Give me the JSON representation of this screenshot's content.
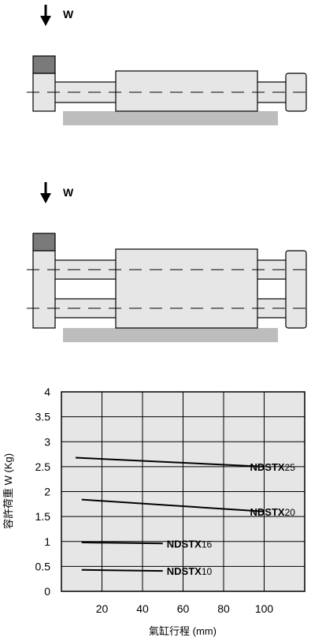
{
  "diagram_top": {
    "load_label": "W"
  },
  "diagram_bottom": {
    "load_label": "W"
  },
  "chart_data": {
    "type": "line",
    "xlabel": "氣缸行程 (mm)",
    "ylabel": "容許荷重 W (Kg)",
    "x_ticks": [
      "20",
      "40",
      "60",
      "80",
      "100"
    ],
    "y_ticks": [
      "0",
      "0.5",
      "1",
      "1.5",
      "2",
      "2.5",
      "3",
      "3.5",
      "4"
    ],
    "xlim": [
      0,
      120
    ],
    "ylim": [
      0,
      4
    ],
    "grid": true,
    "series": [
      {
        "name": "NDSTX",
        "suffix": "25",
        "x": [
          7,
          100
        ],
        "y": [
          2.68,
          2.5
        ]
      },
      {
        "name": "NDSTX",
        "suffix": "20",
        "x": [
          10,
          100
        ],
        "y": [
          1.84,
          1.6
        ]
      },
      {
        "name": "NDSTX",
        "suffix": "16",
        "x": [
          10,
          50
        ],
        "y": [
          0.98,
          0.96
        ]
      },
      {
        "name": "NDSTX",
        "suffix": "10",
        "x": [
          10,
          50
        ],
        "y": [
          0.43,
          0.41
        ]
      }
    ]
  }
}
